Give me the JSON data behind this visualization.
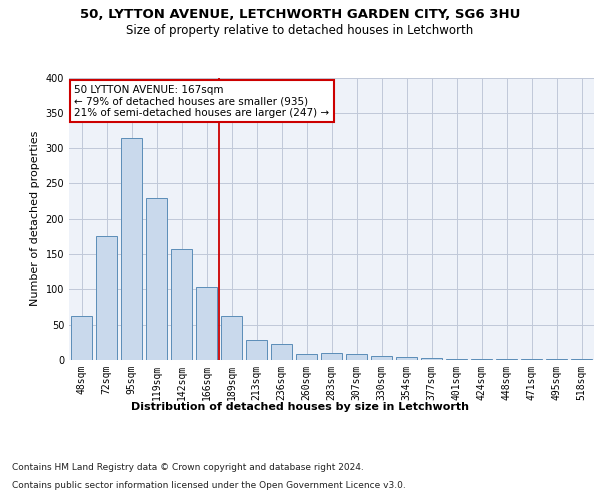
{
  "title_line1": "50, LYTTON AVENUE, LETCHWORTH GARDEN CITY, SG6 3HU",
  "title_line2": "Size of property relative to detached houses in Letchworth",
  "xlabel": "Distribution of detached houses by size in Letchworth",
  "ylabel": "Number of detached properties",
  "categories": [
    "48sqm",
    "72sqm",
    "95sqm",
    "119sqm",
    "142sqm",
    "166sqm",
    "189sqm",
    "213sqm",
    "236sqm",
    "260sqm",
    "283sqm",
    "307sqm",
    "330sqm",
    "354sqm",
    "377sqm",
    "401sqm",
    "424sqm",
    "448sqm",
    "471sqm",
    "495sqm",
    "518sqm"
  ],
  "values": [
    62,
    175,
    315,
    230,
    157,
    103,
    62,
    28,
    22,
    9,
    10,
    8,
    6,
    4,
    3,
    2,
    2,
    1,
    1,
    1,
    1
  ],
  "bar_color": "#c9d9ec",
  "bar_edge_color": "#5b8db8",
  "grid_color": "#c0c8d8",
  "background_color": "#eef2f9",
  "annotation_text": "50 LYTTON AVENUE: 167sqm\n← 79% of detached houses are smaller (935)\n21% of semi-detached houses are larger (247) →",
  "vline_x": 5.5,
  "annotation_box_color": "#ffffff",
  "annotation_box_edge": "#cc0000",
  "footer_line1": "Contains HM Land Registry data © Crown copyright and database right 2024.",
  "footer_line2": "Contains public sector information licensed under the Open Government Licence v3.0.",
  "ylim": [
    0,
    400
  ],
  "yticks": [
    0,
    50,
    100,
    150,
    200,
    250,
    300,
    350,
    400
  ],
  "title_fontsize": 9.5,
  "subtitle_fontsize": 8.5,
  "axis_label_fontsize": 8,
  "tick_fontsize": 7,
  "annotation_fontsize": 7.5,
  "footer_fontsize": 6.5
}
